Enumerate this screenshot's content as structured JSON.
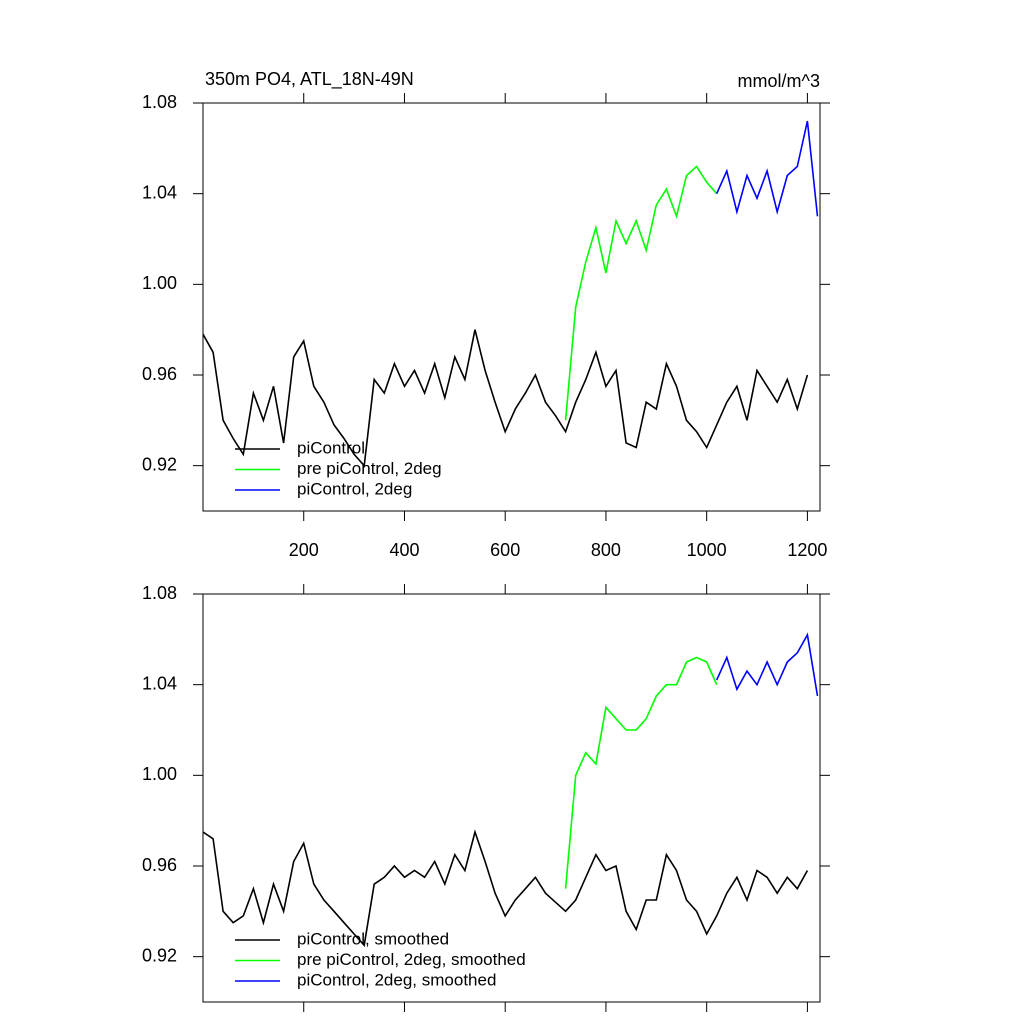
{
  "chart_data": [
    {
      "type": "line",
      "title": "350m PO4, ATL_18N-49N",
      "units": "mmol/m^3",
      "xlim": [
        0,
        1225
      ],
      "ylim": [
        0.9,
        1.08
      ],
      "xticks": [
        200,
        400,
        600,
        800,
        1000,
        1200
      ],
      "xticklabels": true,
      "yticks": [
        1.08,
        1.04,
        {
          "value": 1,
          "label": "1.00"
        },
        0.96,
        0.92
      ],
      "legend": "lower left",
      "series": [
        {
          "name": "piControl",
          "color": "#000000",
          "x": [
            0,
            20,
            40,
            60,
            80,
            100,
            120,
            140,
            160,
            180,
            200,
            220,
            240,
            260,
            280,
            300,
            320,
            340,
            360,
            380,
            400,
            420,
            440,
            460,
            480,
            500,
            520,
            540,
            560,
            580,
            600,
            620,
            640,
            660,
            680,
            700,
            720,
            740,
            760,
            780,
            800,
            820,
            840,
            860,
            880,
            900,
            920,
            940,
            960,
            980,
            1000,
            1020,
            1040,
            1060,
            1080,
            1100,
            1120,
            1140,
            1160,
            1180,
            1200
          ],
          "values": [
            0.978,
            0.97,
            0.94,
            0.932,
            0.925,
            0.952,
            0.94,
            0.955,
            0.93,
            0.968,
            0.975,
            0.955,
            0.948,
            0.938,
            0.932,
            0.925,
            0.92,
            0.958,
            0.952,
            0.965,
            0.955,
            0.962,
            0.952,
            0.965,
            0.95,
            0.968,
            0.958,
            0.98,
            0.962,
            0.948,
            0.935,
            0.945,
            0.952,
            0.96,
            0.948,
            0.942,
            0.935,
            0.948,
            0.958,
            0.97,
            0.955,
            0.962,
            0.93,
            0.928,
            0.948,
            0.945,
            0.965,
            0.955,
            0.94,
            0.935,
            0.928,
            0.938,
            0.948,
            0.955,
            0.94,
            0.962,
            0.955,
            0.948,
            0.958,
            0.945,
            0.96
          ]
        },
        {
          "name": "pre piControl, 2deg",
          "color": "#00ff00",
          "x": [
            720,
            740,
            760,
            780,
            800,
            820,
            840,
            860,
            880,
            900,
            920,
            940,
            960,
            980,
            1000,
            1020
          ],
          "values": [
            0.94,
            0.99,
            1.01,
            1.025,
            1.005,
            1.028,
            1.018,
            1.028,
            1.015,
            1.035,
            1.042,
            1.03,
            1.048,
            1.052,
            1.045,
            1.04
          ]
        },
        {
          "name": "piControl, 2deg",
          "color": "#0000ff",
          "x": [
            1020,
            1040,
            1060,
            1080,
            1100,
            1120,
            1140,
            1160,
            1180,
            1200,
            1220
          ],
          "values": [
            1.04,
            1.05,
            1.032,
            1.048,
            1.038,
            1.05,
            1.032,
            1.048,
            1.052,
            1.072,
            1.03
          ]
        }
      ]
    },
    {
      "type": "line",
      "xlim": [
        0,
        1225
      ],
      "ylim": [
        0.9,
        1.08
      ],
      "xticks": [
        200,
        400,
        600,
        800,
        1000,
        1200
      ],
      "xticklabels": false,
      "yticks": [
        1.08,
        1.04,
        {
          "value": 1,
          "label": "1.00"
        },
        0.96,
        0.92
      ],
      "legend": "lower left",
      "series": [
        {
          "name": "piControl, smoothed",
          "color": "#000000",
          "x": [
            0,
            20,
            40,
            60,
            80,
            100,
            120,
            140,
            160,
            180,
            200,
            220,
            240,
            260,
            280,
            300,
            320,
            340,
            360,
            380,
            400,
            420,
            440,
            460,
            480,
            500,
            520,
            540,
            560,
            580,
            600,
            620,
            640,
            660,
            680,
            700,
            720,
            740,
            760,
            780,
            800,
            820,
            840,
            860,
            880,
            900,
            920,
            940,
            960,
            980,
            1000,
            1020,
            1040,
            1060,
            1080,
            1100,
            1120,
            1140,
            1160,
            1180,
            1200
          ],
          "values": [
            0.975,
            0.972,
            0.94,
            0.935,
            0.938,
            0.95,
            0.935,
            0.952,
            0.94,
            0.962,
            0.97,
            0.952,
            0.945,
            0.94,
            0.935,
            0.93,
            0.925,
            0.952,
            0.955,
            0.96,
            0.955,
            0.958,
            0.955,
            0.962,
            0.952,
            0.965,
            0.958,
            0.975,
            0.962,
            0.948,
            0.938,
            0.945,
            0.95,
            0.955,
            0.948,
            0.944,
            0.94,
            0.945,
            0.955,
            0.965,
            0.958,
            0.96,
            0.94,
            0.932,
            0.945,
            0.945,
            0.965,
            0.958,
            0.945,
            0.94,
            0.93,
            0.938,
            0.948,
            0.955,
            0.945,
            0.958,
            0.955,
            0.948,
            0.955,
            0.95,
            0.958
          ]
        },
        {
          "name": "pre piControl, 2deg, smoothed",
          "color": "#00ff00",
          "x": [
            720,
            740,
            760,
            780,
            800,
            820,
            840,
            860,
            880,
            900,
            920,
            940,
            960,
            980,
            1000,
            1020
          ],
          "values": [
            0.95,
            1.0,
            1.01,
            1.005,
            1.03,
            1.025,
            1.02,
            1.02,
            1.025,
            1.035,
            1.04,
            1.04,
            1.05,
            1.052,
            1.05,
            1.04
          ]
        },
        {
          "name": "piControl, 2deg, smoothed",
          "color": "#0000ff",
          "x": [
            1020,
            1040,
            1060,
            1080,
            1100,
            1120,
            1140,
            1160,
            1180,
            1200,
            1220
          ],
          "values": [
            1.042,
            1.052,
            1.038,
            1.046,
            1.04,
            1.05,
            1.04,
            1.05,
            1.054,
            1.062,
            1.035
          ]
        }
      ]
    }
  ]
}
